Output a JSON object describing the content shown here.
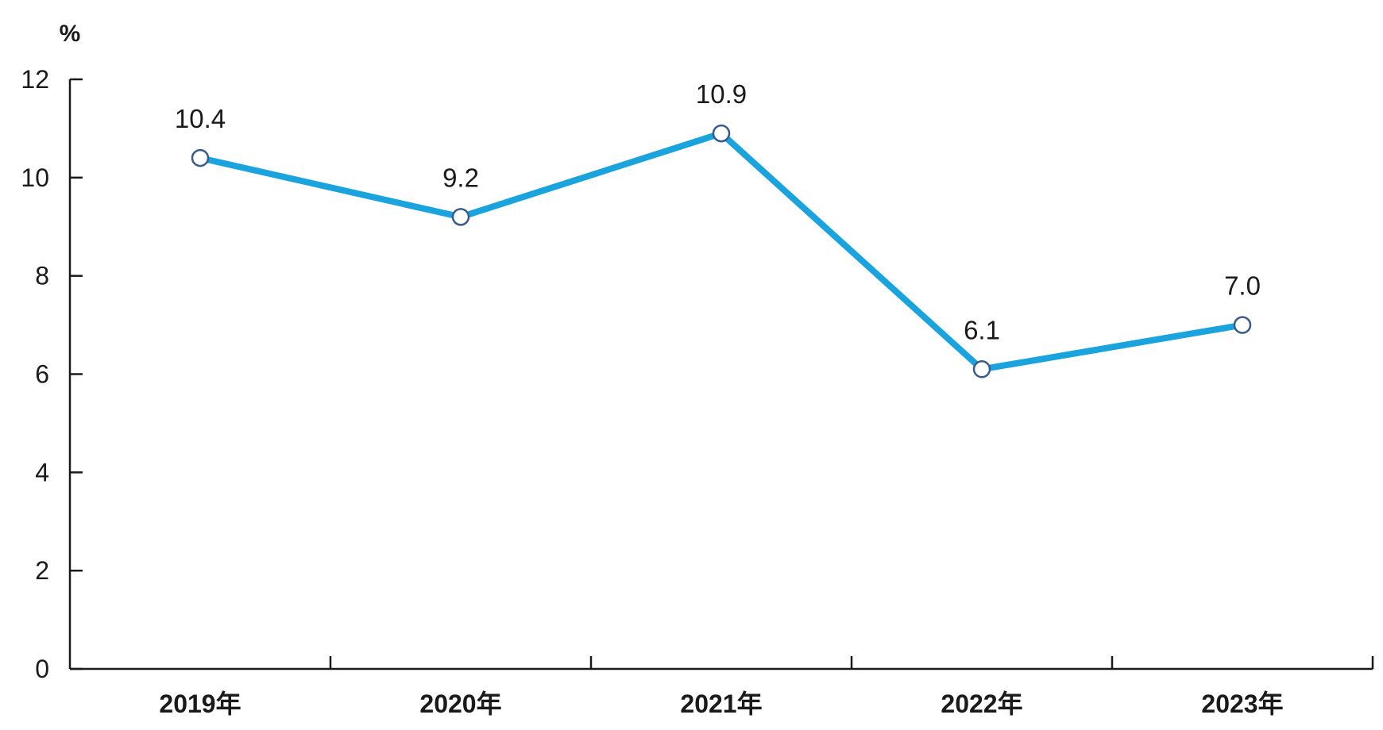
{
  "chart_data": {
    "type": "line",
    "unit_label": "%",
    "categories": [
      "2019年",
      "2020年",
      "2021年",
      "2022年",
      "2023年"
    ],
    "series": [
      {
        "values": [
          10.4,
          9.2,
          10.9,
          6.1,
          7.0
        ]
      }
    ],
    "data_labels": [
      "10.4",
      "9.2",
      "10.9",
      "6.1",
      "7.0"
    ],
    "y_ticks": [
      "0",
      "2",
      "4",
      "6",
      "8",
      "10",
      "12"
    ],
    "ylim": [
      0,
      12
    ],
    "grid": false,
    "legend": "none",
    "colors": {
      "line": "#1aa3dd",
      "marker_fill": "#ffffff",
      "marker_stroke": "#3a5a8c",
      "axis": "#1a1a1a"
    }
  }
}
